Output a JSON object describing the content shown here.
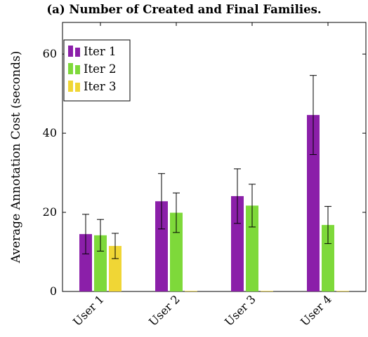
{
  "chart_data": {
    "type": "bar",
    "title": "(a) Number of Created and Final Families.",
    "xlabel": "",
    "ylabel": "Average Annotation Cost (seconds)",
    "ylim": [
      0,
      68
    ],
    "yticks": [
      0,
      20,
      40,
      60
    ],
    "categories": [
      "User 1",
      "User 2",
      "User 3",
      "User 4"
    ],
    "legend_position": "top-left",
    "grid": false,
    "series": [
      {
        "name": "Iter 1",
        "color": "#8b1fa9",
        "values": [
          14.5,
          22.8,
          24.1,
          44.6
        ],
        "error": [
          5.0,
          7.0,
          6.9,
          10.0
        ]
      },
      {
        "name": "Iter 2",
        "color": "#7ed93a",
        "values": [
          14.2,
          19.9,
          21.7,
          16.8
        ],
        "error": [
          4.0,
          5.0,
          5.4,
          4.7
        ]
      },
      {
        "name": "Iter 3",
        "color": "#f0d635",
        "values": [
          11.5,
          0,
          0,
          0
        ],
        "error": [
          3.2,
          0,
          0,
          0
        ]
      }
    ]
  }
}
